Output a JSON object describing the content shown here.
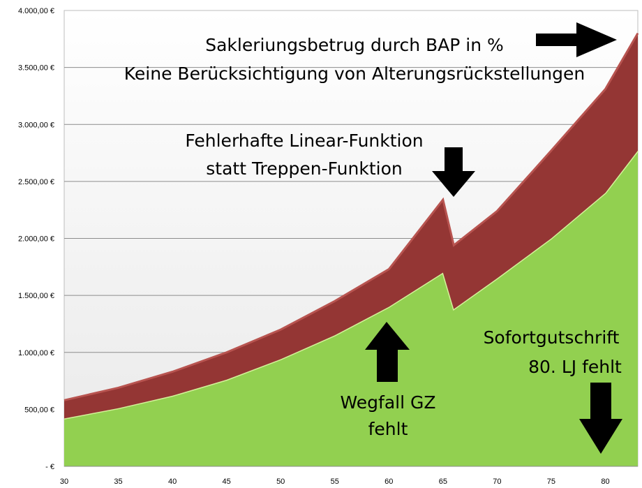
{
  "chart_data": {
    "type": "area",
    "stacked": true,
    "x": [
      30,
      35,
      40,
      45,
      50,
      55,
      60,
      65,
      66,
      70,
      75,
      80,
      83
    ],
    "xlim": [
      30,
      83
    ],
    "ylim": [
      0,
      4000
    ],
    "y_ticks": [
      0,
      500,
      1000,
      1500,
      2000,
      2500,
      3000,
      3500,
      4000
    ],
    "y_tick_labels": [
      "-   €",
      "500,00 €",
      "1.000,00 €",
      "1.500,00 €",
      "2.000,00 €",
      "2.500,00 €",
      "3.000,00 €",
      "3.500,00 €",
      "4.000,00 €"
    ],
    "x_ticks": [
      30,
      35,
      40,
      45,
      50,
      55,
      60,
      65,
      70,
      75,
      80
    ],
    "x_tick_labels": [
      "30",
      "35",
      "40",
      "45",
      "50",
      "55",
      "60",
      "65",
      "70",
      "75",
      "80"
    ],
    "grid": true,
    "series": [
      {
        "color": "#92d050",
        "values": [
          420,
          510,
          620,
          760,
          940,
          1150,
          1400,
          1700,
          1380,
          1650,
          2000,
          2400,
          2770
        ]
      },
      {
        "color": "#943634",
        "values": [
          160,
          180,
          210,
          240,
          260,
          300,
          330,
          640,
          560,
          590,
          770,
          910,
          1030
        ]
      }
    ],
    "annotations": [
      {
        "lines": [
          "Sakleriungsbetrug durch BAP in %",
          "Keine Berücksichtigung von Alterungsrückstellungen"
        ],
        "arrow": "right"
      },
      {
        "lines": [
          "Fehlerhafte Linear-Funktion",
          "statt Treppen-Funktion"
        ],
        "arrow": "down"
      },
      {
        "lines": [
          "Wegfall GZ",
          "fehlt"
        ],
        "arrow": "up"
      },
      {
        "lines": [
          "Sofortgutschrift",
          "80. LJ fehlt"
        ],
        "arrow": "down"
      }
    ]
  }
}
